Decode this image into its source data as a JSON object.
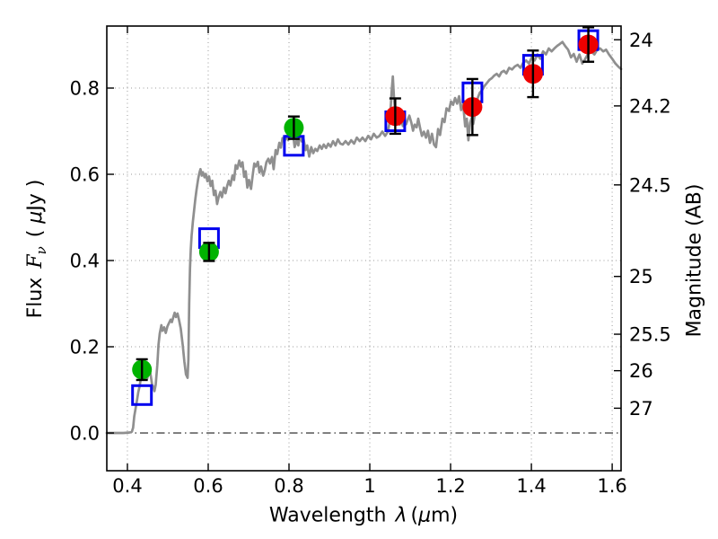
{
  "chart_data": {
    "type": "line+scatter",
    "title": "",
    "xlabel_parts": {
      "text": "Wavelength",
      "symbol": "λ",
      "unit_open": "(",
      "unit_mu": "μ",
      "unit_close": "m)"
    },
    "ylabel_left_parts": {
      "text": "Flux",
      "symbol": "F",
      "symbol_sub": "ν",
      "unit_open": "( ",
      "unit_mu": "μ",
      "unit_close": "Jy )"
    },
    "ylabel_right": "Magnitude (AB)",
    "xlim": [
      0.349,
      1.622
    ],
    "ylim": [
      -0.0875,
      0.9438
    ],
    "grid": true,
    "zero_line_style": "dash-dot",
    "x_ticks": [
      {
        "v": 0.4,
        "label": "0.4"
      },
      {
        "v": 0.6,
        "label": "0.6"
      },
      {
        "v": 0.8,
        "label": "0.8"
      },
      {
        "v": 1.0,
        "label": "1"
      },
      {
        "v": 1.2,
        "label": "1.2"
      },
      {
        "v": 1.4,
        "label": "1.4"
      },
      {
        "v": 1.6,
        "label": "1.6"
      }
    ],
    "y_ticks": [
      {
        "v": 0.0,
        "label": "0.0"
      },
      {
        "v": 0.2,
        "label": "0.2"
      },
      {
        "v": 0.4,
        "label": "0.4"
      },
      {
        "v": 0.6,
        "label": "0.6"
      },
      {
        "v": 0.8,
        "label": "0.8"
      }
    ],
    "right_axis_ticks": [
      {
        "label": "24",
        "flux": 0.912
      },
      {
        "label": "24.2",
        "flux": 0.7586
      },
      {
        "label": "24.5",
        "flux": 0.5754
      },
      {
        "label": "25",
        "flux": 0.3631
      },
      {
        "label": "25.5",
        "flux": 0.2291
      },
      {
        "label": "26",
        "flux": 0.1445
      },
      {
        "label": "27",
        "flux": 0.0575
      }
    ],
    "colors": {
      "spectrum": "#8f8f8f",
      "model": "#0000ee",
      "optical": "#00b300",
      "nir": "#ee0000",
      "error": "#000000",
      "grid": "#9a9a9a",
      "frame": "#000000"
    },
    "series": [
      {
        "name": "model-spectrum",
        "kind": "line",
        "color_key": "spectrum",
        "line_width": 2.7,
        "points": [
          [
            0.349,
            0.0
          ],
          [
            0.37,
            0.0
          ],
          [
            0.39,
            0.0
          ],
          [
            0.405,
            0.001
          ],
          [
            0.411,
            0.003
          ],
          [
            0.414,
            0.012
          ],
          [
            0.417,
            0.039
          ],
          [
            0.42,
            0.056
          ],
          [
            0.424,
            0.078
          ],
          [
            0.427,
            0.095
          ],
          [
            0.43,
            0.108
          ],
          [
            0.433,
            0.125
          ],
          [
            0.436,
            0.14
          ],
          [
            0.44,
            0.15
          ],
          [
            0.443,
            0.145
          ],
          [
            0.446,
            0.133
          ],
          [
            0.449,
            0.126
          ],
          [
            0.452,
            0.14
          ],
          [
            0.455,
            0.149
          ],
          [
            0.458,
            0.131
          ],
          [
            0.461,
            0.113
          ],
          [
            0.464,
            0.107
          ],
          [
            0.467,
            0.097
          ],
          [
            0.47,
            0.112
          ],
          [
            0.474,
            0.158
          ],
          [
            0.477,
            0.205
          ],
          [
            0.48,
            0.231
          ],
          [
            0.484,
            0.25
          ],
          [
            0.487,
            0.237
          ],
          [
            0.491,
            0.245
          ],
          [
            0.495,
            0.232
          ],
          [
            0.499,
            0.247
          ],
          [
            0.503,
            0.255
          ],
          [
            0.507,
            0.263
          ],
          [
            0.51,
            0.257
          ],
          [
            0.514,
            0.27
          ],
          [
            0.517,
            0.279
          ],
          [
            0.52,
            0.269
          ],
          [
            0.524,
            0.277
          ],
          [
            0.528,
            0.261
          ],
          [
            0.532,
            0.242
          ],
          [
            0.537,
            0.204
          ],
          [
            0.541,
            0.166
          ],
          [
            0.545,
            0.136
          ],
          [
            0.549,
            0.128
          ],
          [
            0.551,
            0.17
          ],
          [
            0.553,
            0.3
          ],
          [
            0.555,
            0.382
          ],
          [
            0.557,
            0.427
          ],
          [
            0.559,
            0.458
          ],
          [
            0.562,
            0.49
          ],
          [
            0.565,
            0.515
          ],
          [
            0.568,
            0.542
          ],
          [
            0.571,
            0.563
          ],
          [
            0.575,
            0.588
          ],
          [
            0.578,
            0.603
          ],
          [
            0.581,
            0.612
          ],
          [
            0.584,
            0.597
          ],
          [
            0.587,
            0.605
          ],
          [
            0.591,
            0.593
          ],
          [
            0.594,
            0.601
          ],
          [
            0.598,
            0.584
          ],
          [
            0.602,
            0.595
          ],
          [
            0.606,
            0.573
          ],
          [
            0.61,
            0.585
          ],
          [
            0.614,
            0.552
          ],
          [
            0.618,
            0.562
          ],
          [
            0.622,
            0.531
          ],
          [
            0.626,
            0.548
          ],
          [
            0.63,
            0.559
          ],
          [
            0.634,
            0.547
          ],
          [
            0.639,
            0.569
          ],
          [
            0.643,
            0.556
          ],
          [
            0.647,
            0.573
          ],
          [
            0.651,
            0.585
          ],
          [
            0.655,
            0.574
          ],
          [
            0.66,
            0.597
          ],
          [
            0.664,
            0.587
          ],
          [
            0.668,
            0.621
          ],
          [
            0.672,
            0.613
          ],
          [
            0.677,
            0.632
          ],
          [
            0.681,
            0.618
          ],
          [
            0.685,
            0.628
          ],
          [
            0.689,
            0.594
          ],
          [
            0.693,
            0.607
          ],
          [
            0.697,
            0.569
          ],
          [
            0.701,
            0.587
          ],
          [
            0.706,
            0.566
          ],
          [
            0.71,
            0.597
          ],
          [
            0.714,
            0.625
          ],
          [
            0.718,
            0.618
          ],
          [
            0.723,
            0.629
          ],
          [
            0.727,
            0.604
          ],
          [
            0.731,
            0.618
          ],
          [
            0.736,
            0.597
          ],
          [
            0.74,
            0.609
          ],
          [
            0.744,
            0.628
          ],
          [
            0.749,
            0.636
          ],
          [
            0.753,
            0.625
          ],
          [
            0.758,
            0.64
          ],
          [
            0.762,
            0.612
          ],
          [
            0.767,
            0.656
          ],
          [
            0.771,
            0.647
          ],
          [
            0.776,
            0.673
          ],
          [
            0.78,
            0.662
          ],
          [
            0.784,
            0.684
          ],
          [
            0.789,
            0.676
          ],
          [
            0.793,
            0.689
          ],
          [
            0.798,
            0.679
          ],
          [
            0.802,
            0.701
          ],
          [
            0.806,
            0.691
          ],
          [
            0.81,
            0.694
          ],
          [
            0.814,
            0.663
          ],
          [
            0.819,
            0.679
          ],
          [
            0.823,
            0.667
          ],
          [
            0.827,
            0.689
          ],
          [
            0.832,
            0.676
          ],
          [
            0.836,
            0.682
          ],
          [
            0.841,
            0.656
          ],
          [
            0.845,
            0.667
          ],
          [
            0.85,
            0.641
          ],
          [
            0.855,
            0.663
          ],
          [
            0.86,
            0.649
          ],
          [
            0.865,
            0.659
          ],
          [
            0.87,
            0.654
          ],
          [
            0.876,
            0.667
          ],
          [
            0.881,
            0.659
          ],
          [
            0.886,
            0.669
          ],
          [
            0.892,
            0.661
          ],
          [
            0.897,
            0.671
          ],
          [
            0.903,
            0.664
          ],
          [
            0.909,
            0.677
          ],
          [
            0.915,
            0.667
          ],
          [
            0.921,
            0.681
          ],
          [
            0.927,
            0.671
          ],
          [
            0.933,
            0.669
          ],
          [
            0.94,
            0.677
          ],
          [
            0.947,
            0.669
          ],
          [
            0.954,
            0.679
          ],
          [
            0.961,
            0.671
          ],
          [
            0.968,
            0.685
          ],
          [
            0.975,
            0.677
          ],
          [
            0.982,
            0.685
          ],
          [
            0.989,
            0.677
          ],
          [
            0.996,
            0.689
          ],
          [
            1.003,
            0.681
          ],
          [
            1.01,
            0.694
          ],
          [
            1.017,
            0.685
          ],
          [
            1.024,
            0.689
          ],
          [
            1.031,
            0.699
          ],
          [
            1.038,
            0.689
          ],
          [
            1.045,
            0.699
          ],
          [
            1.05,
            0.726
          ],
          [
            1.054,
            0.79
          ],
          [
            1.057,
            0.827
          ],
          [
            1.06,
            0.777
          ],
          [
            1.063,
            0.741
          ],
          [
            1.066,
            0.726
          ],
          [
            1.07,
            0.731
          ],
          [
            1.074,
            0.715
          ],
          [
            1.078,
            0.725
          ],
          [
            1.082,
            0.712
          ],
          [
            1.086,
            0.721
          ],
          [
            1.09,
            0.716
          ],
          [
            1.094,
            0.727
          ],
          [
            1.098,
            0.736
          ],
          [
            1.103,
            0.719
          ],
          [
            1.107,
            0.701
          ],
          [
            1.111,
            0.715
          ],
          [
            1.116,
            0.709
          ],
          [
            1.12,
            0.729
          ],
          [
            1.125,
            0.705
          ],
          [
            1.129,
            0.689
          ],
          [
            1.134,
            0.699
          ],
          [
            1.139,
            0.685
          ],
          [
            1.144,
            0.701
          ],
          [
            1.149,
            0.673
          ],
          [
            1.154,
            0.694
          ],
          [
            1.159,
            0.669
          ],
          [
            1.164,
            0.663
          ],
          [
            1.169,
            0.705
          ],
          [
            1.174,
            0.691
          ],
          [
            1.18,
            0.729
          ],
          [
            1.185,
            0.721
          ],
          [
            1.19,
            0.753
          ],
          [
            1.196,
            0.747
          ],
          [
            1.201,
            0.769
          ],
          [
            1.206,
            0.761
          ],
          [
            1.211,
            0.777
          ],
          [
            1.216,
            0.764
          ],
          [
            1.221,
            0.781
          ],
          [
            1.226,
            0.749
          ],
          [
            1.231,
            0.764
          ],
          [
            1.236,
            0.711
          ],
          [
            1.24,
            0.729
          ],
          [
            1.244,
            0.679
          ],
          [
            1.248,
            0.719
          ],
          [
            1.252,
            0.731
          ],
          [
            1.256,
            0.717
          ],
          [
            1.26,
            0.739
          ],
          [
            1.266,
            0.774
          ],
          [
            1.272,
            0.789
          ],
          [
            1.278,
            0.795
          ],
          [
            1.284,
            0.805
          ],
          [
            1.29,
            0.812
          ],
          [
            1.296,
            0.819
          ],
          [
            1.302,
            0.823
          ],
          [
            1.308,
            0.829
          ],
          [
            1.314,
            0.833
          ],
          [
            1.32,
            0.827
          ],
          [
            1.326,
            0.837
          ],
          [
            1.332,
            0.84
          ],
          [
            1.338,
            0.834
          ],
          [
            1.345,
            0.847
          ],
          [
            1.352,
            0.843
          ],
          [
            1.359,
            0.85
          ],
          [
            1.366,
            0.854
          ],
          [
            1.373,
            0.847
          ],
          [
            1.38,
            0.859
          ],
          [
            1.387,
            0.864
          ],
          [
            1.394,
            0.857
          ],
          [
            1.401,
            0.871
          ],
          [
            1.408,
            0.864
          ],
          [
            1.415,
            0.878
          ],
          [
            1.422,
            0.868
          ],
          [
            1.429,
            0.885
          ],
          [
            1.436,
            0.878
          ],
          [
            1.443,
            0.892
          ],
          [
            1.45,
            0.885
          ],
          [
            1.457,
            0.892
          ],
          [
            1.464,
            0.898
          ],
          [
            1.47,
            0.902
          ],
          [
            1.477,
            0.907
          ],
          [
            1.484,
            0.897
          ],
          [
            1.491,
            0.889
          ],
          [
            1.498,
            0.871
          ],
          [
            1.505,
            0.879
          ],
          [
            1.512,
            0.861
          ],
          [
            1.519,
            0.878
          ],
          [
            1.526,
            0.857
          ],
          [
            1.533,
            0.867
          ],
          [
            1.54,
            0.879
          ],
          [
            1.548,
            0.885
          ],
          [
            1.556,
            0.878
          ],
          [
            1.563,
            0.889
          ],
          [
            1.57,
            0.892
          ],
          [
            1.578,
            0.885
          ],
          [
            1.585,
            0.889
          ],
          [
            1.592,
            0.878
          ],
          [
            1.6,
            0.868
          ],
          [
            1.608,
            0.857
          ],
          [
            1.615,
            0.85
          ],
          [
            1.622,
            0.844
          ]
        ]
      },
      {
        "name": "model-photometry",
        "kind": "scatter-open-square",
        "color_key": "model",
        "marker_size": 21,
        "stroke_width": 3,
        "points": [
          {
            "x": 0.436,
            "y": 0.088
          },
          {
            "x": 0.602,
            "y": 0.452
          },
          {
            "x": 0.812,
            "y": 0.666
          },
          {
            "x": 1.063,
            "y": 0.723
          },
          {
            "x": 1.254,
            "y": 0.79
          },
          {
            "x": 1.404,
            "y": 0.854
          },
          {
            "x": 1.541,
            "y": 0.911
          }
        ]
      },
      {
        "name": "observed-optical",
        "kind": "scatter-circle",
        "color_key": "optical",
        "marker_size": 22,
        "points": [
          {
            "x": 0.436,
            "y": 0.147,
            "yerr": 0.024
          },
          {
            "x": 0.602,
            "y": 0.42,
            "yerr": 0.021
          },
          {
            "x": 0.812,
            "y": 0.708,
            "yerr": 0.026
          }
        ]
      },
      {
        "name": "observed-nir",
        "kind": "scatter-circle",
        "color_key": "nir",
        "marker_size": 22,
        "points": [
          {
            "x": 1.063,
            "y": 0.735,
            "yerr": 0.041
          },
          {
            "x": 1.254,
            "y": 0.756,
            "yerr": 0.065
          },
          {
            "x": 1.404,
            "y": 0.833,
            "yerr": 0.054
          },
          {
            "x": 1.541,
            "y": 0.901,
            "yerr": 0.04
          }
        ]
      }
    ]
  }
}
